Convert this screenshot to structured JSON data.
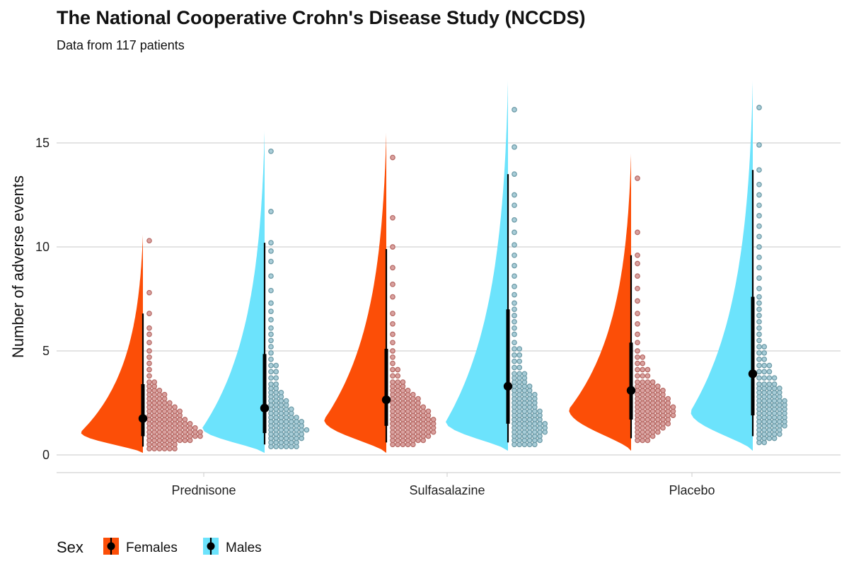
{
  "chart_data": {
    "type": "violin",
    "title": "The National Cooperative Crohn's Disease Study (NCCDS)",
    "subtitle": "Data from 117 patients",
    "ylabel": "Number of adverse events",
    "xlabel": "",
    "ylim": [
      -0.5,
      17.5
    ],
    "yticks": [
      0,
      5,
      10,
      15
    ],
    "grid": true,
    "categories": [
      "Prednisone",
      "Sulfasalazine",
      "Placebo"
    ],
    "legend": {
      "title": "Sex",
      "position": "bottom-left",
      "entries": [
        "Females",
        "Males"
      ]
    },
    "series": [
      {
        "name": "Females",
        "color": "#FC4E07",
        "point_fill": "#D9A2A0",
        "point_stroke": "#B86B66",
        "groups": [
          {
            "category": "Prednisone",
            "median": 1.75,
            "q1": 0.9,
            "q3": 3.4,
            "low": 0.4,
            "high": 6.8,
            "density_max_at": 1.1,
            "range": [
              0.1,
              10.6
            ],
            "values": [
              0.3,
              0.3,
              0.3,
              0.3,
              0.3,
              0.3,
              0.5,
              0.5,
              0.5,
              0.5,
              0.5,
              0.5,
              0.7,
              0.7,
              0.7,
              0.7,
              0.7,
              0.7,
              0.7,
              0.7,
              0.7,
              0.9,
              0.9,
              0.9,
              0.9,
              0.9,
              0.9,
              0.9,
              0.9,
              0.9,
              0.9,
              0.9,
              1.1,
              1.1,
              1.1,
              1.1,
              1.1,
              1.1,
              1.1,
              1.1,
              1.1,
              1.1,
              1.1,
              1.3,
              1.3,
              1.3,
              1.3,
              1.3,
              1.3,
              1.3,
              1.3,
              1.3,
              1.3,
              1.5,
              1.5,
              1.5,
              1.5,
              1.5,
              1.5,
              1.5,
              1.5,
              1.5,
              1.7,
              1.7,
              1.7,
              1.7,
              1.7,
              1.7,
              1.7,
              1.7,
              1.9,
              1.9,
              1.9,
              1.9,
              1.9,
              1.9,
              1.9,
              2.1,
              2.1,
              2.1,
              2.1,
              2.1,
              2.1,
              2.1,
              2.3,
              2.3,
              2.3,
              2.3,
              2.3,
              2.3,
              2.5,
              2.5,
              2.5,
              2.5,
              2.5,
              2.7,
              2.7,
              2.7,
              2.7,
              2.9,
              2.9,
              2.9,
              2.9,
              3.1,
              3.1,
              3.1,
              3.3,
              3.3,
              3.5,
              3.5,
              3.8,
              4.1,
              4.4,
              4.7,
              5.0,
              5.4,
              5.8,
              6.1,
              6.8,
              7.8,
              10.3
            ]
          },
          {
            "category": "Sulfasalazine",
            "median": 2.65,
            "q1": 1.4,
            "q3": 5.1,
            "low": 0.6,
            "high": 9.9,
            "density_max_at": 1.7,
            "range": [
              0.1,
              15.5
            ],
            "values": [
              0.5,
              0.5,
              0.5,
              0.5,
              0.5,
              0.7,
              0.7,
              0.7,
              0.7,
              0.7,
              0.7,
              0.7,
              0.9,
              0.9,
              0.9,
              0.9,
              0.9,
              0.9,
              0.9,
              0.9,
              1.1,
              1.1,
              1.1,
              1.1,
              1.1,
              1.1,
              1.1,
              1.1,
              1.1,
              1.3,
              1.3,
              1.3,
              1.3,
              1.3,
              1.3,
              1.3,
              1.3,
              1.3,
              1.5,
              1.5,
              1.5,
              1.5,
              1.5,
              1.5,
              1.5,
              1.5,
              1.5,
              1.7,
              1.7,
              1.7,
              1.7,
              1.7,
              1.7,
              1.7,
              1.7,
              1.7,
              1.9,
              1.9,
              1.9,
              1.9,
              1.9,
              1.9,
              1.9,
              1.9,
              2.1,
              2.1,
              2.1,
              2.1,
              2.1,
              2.1,
              2.1,
              2.1,
              2.3,
              2.3,
              2.3,
              2.3,
              2.3,
              2.3,
              2.3,
              2.5,
              2.5,
              2.5,
              2.5,
              2.5,
              2.5,
              2.7,
              2.7,
              2.7,
              2.7,
              2.7,
              2.7,
              2.9,
              2.9,
              2.9,
              2.9,
              2.9,
              3.1,
              3.1,
              3.1,
              3.1,
              3.3,
              3.3,
              3.3,
              3.5,
              3.5,
              3.5,
              3.8,
              3.8,
              4.1,
              4.1,
              4.4,
              4.7,
              5.0,
              5.4,
              5.8,
              6.3,
              6.8,
              7.6,
              8.2,
              9.0,
              10.0,
              11.4,
              14.3
            ]
          },
          {
            "category": "Placebo",
            "median": 3.1,
            "q1": 1.7,
            "q3": 5.4,
            "low": 0.8,
            "high": 9.6,
            "density_max_at": 2.2,
            "range": [
              0.2,
              14.5
            ],
            "values": [
              0.7,
              0.7,
              0.7,
              0.9,
              0.9,
              0.9,
              0.9,
              1.1,
              1.1,
              1.1,
              1.1,
              1.1,
              1.3,
              1.3,
              1.3,
              1.3,
              1.3,
              1.3,
              1.5,
              1.5,
              1.5,
              1.5,
              1.5,
              1.5,
              1.5,
              1.7,
              1.7,
              1.7,
              1.7,
              1.7,
              1.7,
              1.7,
              1.9,
              1.9,
              1.9,
              1.9,
              1.9,
              1.9,
              1.9,
              1.9,
              2.1,
              2.1,
              2.1,
              2.1,
              2.1,
              2.1,
              2.1,
              2.1,
              2.3,
              2.3,
              2.3,
              2.3,
              2.3,
              2.3,
              2.3,
              2.3,
              2.5,
              2.5,
              2.5,
              2.5,
              2.5,
              2.5,
              2.5,
              2.7,
              2.7,
              2.7,
              2.7,
              2.7,
              2.7,
              2.7,
              2.9,
              2.9,
              2.9,
              2.9,
              2.9,
              2.9,
              3.1,
              3.1,
              3.1,
              3.1,
              3.1,
              3.1,
              3.3,
              3.3,
              3.3,
              3.3,
              3.3,
              3.5,
              3.5,
              3.5,
              3.5,
              3.8,
              3.8,
              3.8,
              4.1,
              4.1,
              4.1,
              4.4,
              4.4,
              4.7,
              4.7,
              5.0,
              5.4,
              5.8,
              6.3,
              6.8,
              7.4,
              8.0,
              8.6,
              9.2,
              9.6,
              10.7,
              13.3
            ]
          }
        ]
      },
      {
        "name": "Males",
        "color": "#6CE3FC",
        "point_fill": "#A9CDD8",
        "point_stroke": "#6E9CA8",
        "groups": [
          {
            "category": "Prednisone",
            "median": 2.25,
            "q1": 1.05,
            "q3": 4.85,
            "low": 0.5,
            "high": 10.2,
            "density_max_at": 1.3,
            "range": [
              0.1,
              15.6
            ],
            "values": [
              0.4,
              0.4,
              0.4,
              0.4,
              0.4,
              0.4,
              0.6,
              0.6,
              0.6,
              0.6,
              0.6,
              0.6,
              0.8,
              0.8,
              0.8,
              0.8,
              0.8,
              0.8,
              0.8,
              1.0,
              1.0,
              1.0,
              1.0,
              1.0,
              1.0,
              1.0,
              1.2,
              1.2,
              1.2,
              1.2,
              1.2,
              1.2,
              1.2,
              1.2,
              1.4,
              1.4,
              1.4,
              1.4,
              1.4,
              1.4,
              1.4,
              1.6,
              1.6,
              1.6,
              1.6,
              1.6,
              1.6,
              1.6,
              1.8,
              1.8,
              1.8,
              1.8,
              1.8,
              1.8,
              2.0,
              2.0,
              2.0,
              2.0,
              2.0,
              2.2,
              2.2,
              2.2,
              2.2,
              2.2,
              2.4,
              2.4,
              2.4,
              2.4,
              2.6,
              2.6,
              2.6,
              2.6,
              2.8,
              2.8,
              2.8,
              3.0,
              3.0,
              3.0,
              3.2,
              3.2,
              3.4,
              3.4,
              3.7,
              3.7,
              4.0,
              4.0,
              4.3,
              4.3,
              4.6,
              4.9,
              5.2,
              5.5,
              5.8,
              6.1,
              6.5,
              6.9,
              7.3,
              7.9,
              8.6,
              9.3,
              9.8,
              10.2,
              11.7,
              14.6
            ]
          },
          {
            "category": "Sulfasalazine",
            "median": 3.3,
            "q1": 1.5,
            "q3": 7.0,
            "low": 0.6,
            "high": 13.5,
            "density_max_at": 1.6,
            "range": [
              0.2,
              18.0
            ],
            "values": [
              0.5,
              0.5,
              0.5,
              0.5,
              0.5,
              0.7,
              0.7,
              0.7,
              0.7,
              0.7,
              0.7,
              0.9,
              0.9,
              0.9,
              0.9,
              0.9,
              0.9,
              1.1,
              1.1,
              1.1,
              1.1,
              1.1,
              1.1,
              1.1,
              1.3,
              1.3,
              1.3,
              1.3,
              1.3,
              1.3,
              1.3,
              1.5,
              1.5,
              1.5,
              1.5,
              1.5,
              1.5,
              1.5,
              1.7,
              1.7,
              1.7,
              1.7,
              1.7,
              1.7,
              1.9,
              1.9,
              1.9,
              1.9,
              1.9,
              1.9,
              2.1,
              2.1,
              2.1,
              2.1,
              2.1,
              2.1,
              2.3,
              2.3,
              2.3,
              2.3,
              2.3,
              2.5,
              2.5,
              2.5,
              2.5,
              2.5,
              2.7,
              2.7,
              2.7,
              2.7,
              2.7,
              2.9,
              2.9,
              2.9,
              2.9,
              2.9,
              3.1,
              3.1,
              3.1,
              3.1,
              3.3,
              3.3,
              3.3,
              3.3,
              3.5,
              3.5,
              3.5,
              3.7,
              3.7,
              3.7,
              3.9,
              3.9,
              3.9,
              4.2,
              4.2,
              4.5,
              4.5,
              4.8,
              4.8,
              5.1,
              5.1,
              5.4,
              5.8,
              6.1,
              6.4,
              6.7,
              7.0,
              7.3,
              7.7,
              8.1,
              8.6,
              9.1,
              9.6,
              10.1,
              10.7,
              11.3,
              12.0,
              12.5,
              13.5,
              14.8,
              16.6
            ]
          },
          {
            "category": "Placebo",
            "median": 3.9,
            "q1": 1.9,
            "q3": 7.6,
            "low": 0.9,
            "high": 13.7,
            "density_max_at": 2.1,
            "range": [
              0.2,
              18.0
            ],
            "values": [
              0.6,
              0.6,
              0.8,
              0.8,
              0.8,
              0.8,
              1.0,
              1.0,
              1.0,
              1.0,
              1.0,
              1.2,
              1.2,
              1.2,
              1.2,
              1.2,
              1.4,
              1.4,
              1.4,
              1.4,
              1.4,
              1.4,
              1.6,
              1.6,
              1.6,
              1.6,
              1.6,
              1.6,
              1.8,
              1.8,
              1.8,
              1.8,
              1.8,
              1.8,
              2.0,
              2.0,
              2.0,
              2.0,
              2.0,
              2.0,
              2.2,
              2.2,
              2.2,
              2.2,
              2.2,
              2.2,
              2.4,
              2.4,
              2.4,
              2.4,
              2.4,
              2.4,
              2.6,
              2.6,
              2.6,
              2.6,
              2.6,
              2.6,
              2.8,
              2.8,
              2.8,
              2.8,
              2.8,
              3.0,
              3.0,
              3.0,
              3.0,
              3.0,
              3.2,
              3.2,
              3.2,
              3.2,
              3.2,
              3.4,
              3.4,
              3.4,
              3.4,
              3.7,
              3.7,
              3.7,
              3.7,
              4.0,
              4.0,
              4.0,
              4.3,
              4.3,
              4.3,
              4.6,
              4.6,
              4.9,
              4.9,
              5.2,
              5.2,
              5.5,
              5.8,
              6.1,
              6.4,
              6.7,
              7.0,
              7.3,
              7.6,
              8.0,
              8.5,
              9.0,
              9.5,
              10.0,
              10.5,
              11.0,
              11.5,
              12.0,
              12.5,
              13.0,
              13.7,
              14.9,
              16.7
            ]
          }
        ]
      }
    ]
  }
}
